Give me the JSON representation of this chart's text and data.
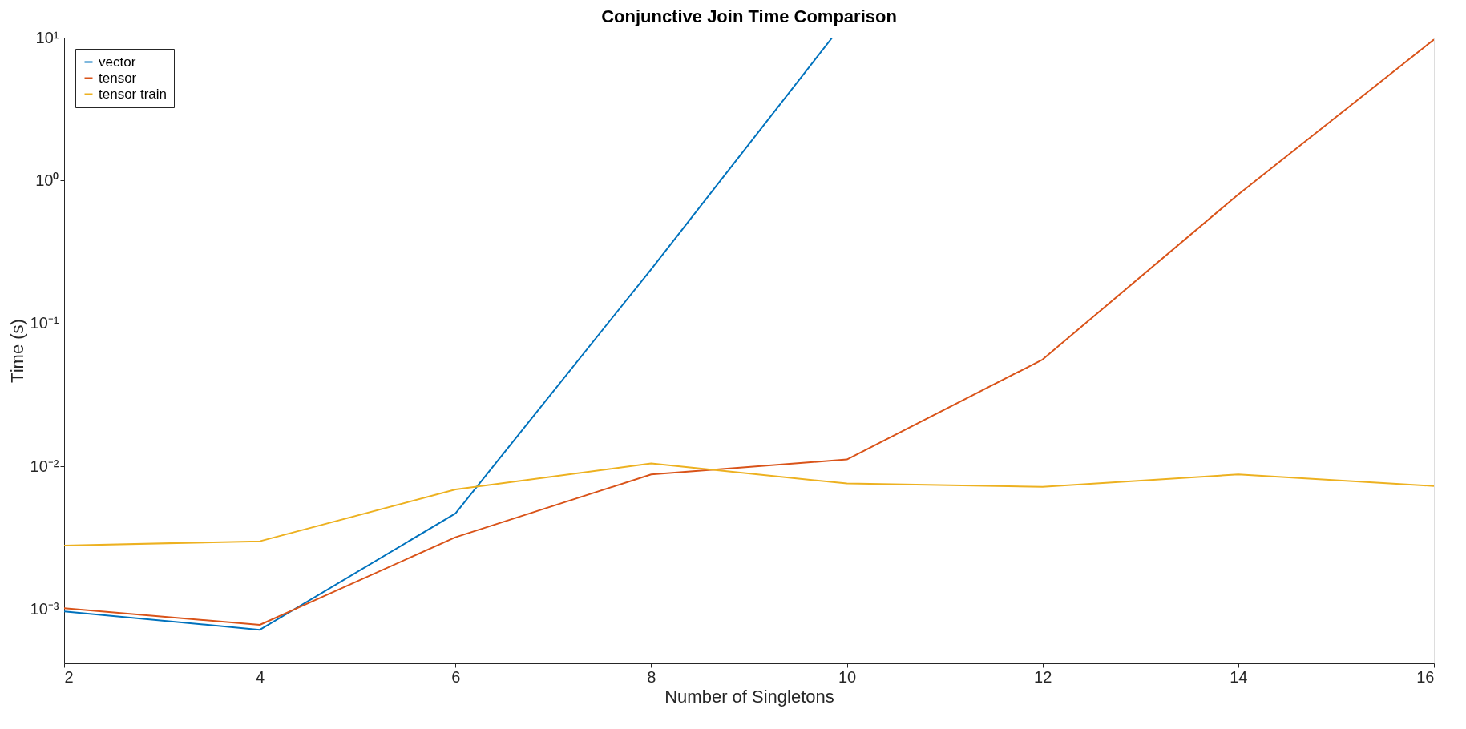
{
  "chart_data": {
    "type": "line",
    "title": "Conjunctive Join Time Comparison",
    "xlabel": "Number of Singletons",
    "ylabel": "Time (s)",
    "x": [
      2,
      4,
      6,
      8,
      10,
      12,
      14,
      16
    ],
    "series": [
      {
        "name": "vector",
        "color": "#0072bd",
        "x": [
          2,
          4,
          6,
          8,
          9.85
        ],
        "values": [
          0.00097,
          0.00072,
          0.0047,
          0.24,
          10
        ]
      },
      {
        "name": "tensor",
        "color": "#d95319",
        "values": [
          0.00102,
          0.00078,
          0.0032,
          0.0088,
          0.0112,
          0.056,
          0.8,
          9.7
        ]
      },
      {
        "name": "tensor train",
        "color": "#edb120",
        "values": [
          0.0028,
          0.003,
          0.0069,
          0.0105,
          0.0076,
          0.0072,
          0.0088,
          0.0073
        ]
      }
    ],
    "log": "y",
    "xlim": [
      2,
      16
    ],
    "xticks": [
      2,
      4,
      6,
      8,
      10,
      12,
      14,
      16
    ],
    "ylim": [
      0.00042,
      10
    ],
    "yticks": [
      {
        "value": 0.001,
        "label": "10⁻³"
      },
      {
        "value": 0.01,
        "label": "10⁻²"
      },
      {
        "value": 0.1,
        "label": "10⁻¹"
      },
      {
        "value": 1,
        "label": "10⁰"
      },
      {
        "value": 10,
        "label": "10¹"
      }
    ],
    "grid": false,
    "legend": "top left",
    "marker": "none",
    "line_style": "solid"
  }
}
